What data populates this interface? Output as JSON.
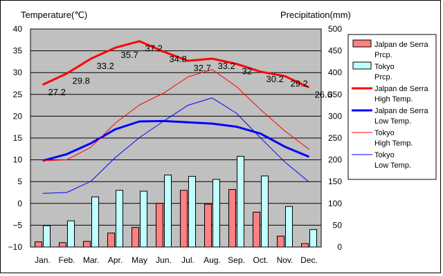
{
  "chart_data": {
    "type": "bar+line",
    "left_axis_label": "Temperature(℃)",
    "right_axis_label": "Precipitation(mm)",
    "categories": [
      "Jan.",
      "Feb.",
      "Mar.",
      "Apr.",
      "May",
      "Jun.",
      "Jul.",
      "Aug.",
      "Sep.",
      "Oct.",
      "Nov.",
      "Dec."
    ],
    "y_left": {
      "min": -10,
      "max": 40,
      "ticks": [
        "40",
        "35",
        "30",
        "25",
        "20",
        "15",
        "10",
        "5",
        "0",
        "−5",
        "−10"
      ]
    },
    "y_right": {
      "min": 0,
      "max": 500,
      "ticks": [
        "500",
        "450",
        "400",
        "350",
        "300",
        "250",
        "200",
        "150",
        "100",
        "50",
        "0"
      ]
    },
    "grid": true,
    "legend_position": "right",
    "colors": {
      "plot_bg": "#c0c0c0",
      "jalpan_bar": "#ff8080",
      "tokyo_bar": "#c0ffff",
      "jalpan_line": "#ff0000",
      "tokyo_line": "#0000ff"
    },
    "bars": [
      {
        "legend": [
          "Jalpan de Serra",
          "Prcp."
        ],
        "color_key": "jalpan_bar",
        "values": [
          12,
          10,
          13,
          32,
          45,
          100,
          130,
          98,
          132,
          80,
          25,
          8
        ]
      },
      {
        "legend": [
          "Tokyo",
          "Prcp."
        ],
        "color_key": "tokyo_bar",
        "values": [
          49,
          60,
          115,
          130,
          128,
          165,
          162,
          155,
          208,
          163,
          93,
          40
        ]
      }
    ],
    "lines": [
      {
        "legend": [
          "Jalpan de Serra",
          "High Temp."
        ],
        "color_key": "jalpan_line",
        "width": 3,
        "values": [
          27.2,
          29.8,
          33.2,
          35.7,
          37.2,
          34.8,
          32.7,
          33.2,
          32.0,
          30.2,
          29.2,
          26.6
        ],
        "labels": [
          "27.2",
          "29.8",
          "33.2",
          "35.7",
          "37.2",
          "34.8",
          "32.7",
          "33.2",
          "32",
          "30.2",
          "29.2",
          "26.6"
        ]
      },
      {
        "legend": [
          "Jalpan de Serra",
          "Low Temp."
        ],
        "color_key": "tokyo_line",
        "width": 3,
        "values": [
          9.8,
          11.3,
          13.8,
          17.0,
          18.8,
          18.9,
          18.6,
          18.3,
          17.6,
          16.0,
          13.0,
          10.7
        ]
      },
      {
        "legend": [
          "Tokyo",
          "High Temp."
        ],
        "color_key": "jalpan_line",
        "width": 1,
        "values": [
          9.8,
          10.0,
          12.9,
          18.4,
          22.6,
          25.3,
          29.0,
          30.7,
          26.8,
          21.5,
          16.6,
          12.4
        ]
      },
      {
        "legend": [
          "Tokyo",
          "Low Temp."
        ],
        "color_key": "tokyo_line",
        "width": 1,
        "values": [
          2.3,
          2.5,
          5.1,
          10.5,
          15.1,
          18.9,
          22.5,
          24.2,
          20.7,
          15.0,
          9.5,
          4.9
        ]
      }
    ]
  }
}
